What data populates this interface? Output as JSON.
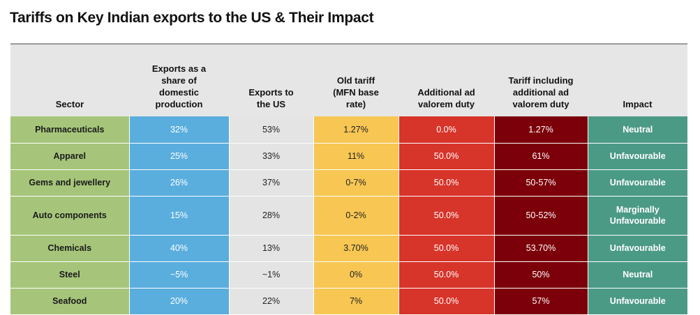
{
  "title": "Tariffs on Key Indian exports to the US & Their Impact",
  "columns": {
    "sector": "Sector",
    "share": [
      "Exports as a",
      "share of",
      "domestic",
      "production"
    ],
    "us": [
      "Exports to",
      "the US"
    ],
    "old": [
      "Old tariff",
      "(MFN base",
      "rate)"
    ],
    "addl": [
      "Additional ad",
      "valorem duty"
    ],
    "total": [
      "Tariff including",
      "additional ad",
      "valorem duty"
    ],
    "impact": "Impact"
  },
  "rows": [
    {
      "sector": "Pharmaceuticals",
      "share": "32%",
      "us": "53%",
      "old": "1.27%",
      "addl": "0.0%",
      "total": "1.27%",
      "impact": [
        "Neutral"
      ]
    },
    {
      "sector": "Apparel",
      "share": "25%",
      "us": "33%",
      "old": "11%",
      "addl": "50.0%",
      "total": "61%",
      "impact": [
        "Unfavourable"
      ]
    },
    {
      "sector": "Gems and jewellery",
      "share": "26%",
      "us": "37%",
      "old": "0-7%",
      "addl": "50.0%",
      "total": "50-57%",
      "impact": [
        "Unfavourable"
      ]
    },
    {
      "sector": "Auto components",
      "share": "15%",
      "us": "28%",
      "old": "0-2%",
      "addl": "50.0%",
      "total": "50-52%",
      "impact": [
        "Marginally",
        "Unfavourable"
      ]
    },
    {
      "sector": "Chemicals",
      "share": "40%",
      "us": "13%",
      "old": "3.70%",
      "addl": "50.0%",
      "total": "53.70%",
      "impact": [
        "Unfavourable"
      ]
    },
    {
      "sector": "Steel",
      "share": "~5%",
      "us": "~1%",
      "old": "0%",
      "addl": "50.0%",
      "total": "50%",
      "impact": [
        "Neutral"
      ]
    },
    {
      "sector": "Seafood",
      "share": "20%",
      "us": "22%",
      "old": "7%",
      "addl": "50.0%",
      "total": "57%",
      "impact": [
        "Unfavourable"
      ]
    }
  ]
}
